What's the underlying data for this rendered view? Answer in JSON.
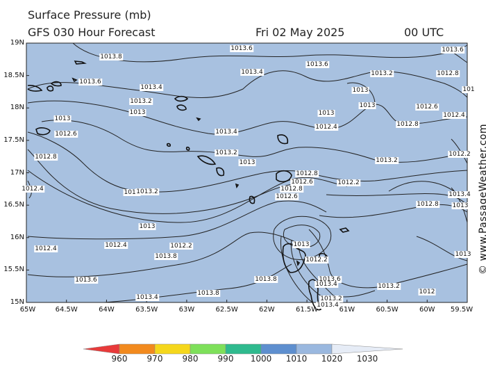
{
  "title_line1": "Surface Pressure (mb)",
  "title_line2": "GFS 030 Hour Forecast",
  "date": "Fri 02 May 2025",
  "time": "00 UTC",
  "credit": "© www.PassageWeather.com",
  "y_axis_labels": [
    "19N",
    "18.5N",
    "18N",
    "17.5N",
    "17N",
    "16.5N",
    "16N",
    "15.5N",
    "15N"
  ],
  "x_axis_labels": [
    "65W",
    "64.5W",
    "64W",
    "63.5W",
    "63W",
    "62.5W",
    "62W",
    "61.5W",
    "61W",
    "60.5W",
    "60W",
    "59.5W"
  ],
  "colorbar": {
    "labels": [
      "960",
      "970",
      "980",
      "990",
      "1000",
      "1010",
      "1020",
      "1030"
    ],
    "colors": [
      "#e83a3a",
      "#f28a1e",
      "#f5d71c",
      "#7ee05a",
      "#2fba8e",
      "#5e8fcf",
      "#9ab8df",
      "#e6ecf6"
    ]
  },
  "map_colors": {
    "sea": "#a8c1e0",
    "isobar": "#222222",
    "land": "#111111"
  },
  "isobar_labels": [
    {
      "text": "1013.8"
    },
    {
      "text": "1013.6"
    },
    {
      "text": "1013.6"
    },
    {
      "text": "1013.4"
    },
    {
      "text": "1013.2"
    },
    {
      "text": "1013"
    },
    {
      "text": "1013"
    },
    {
      "text": "1012.6"
    },
    {
      "text": "1012.8"
    },
    {
      "text": "1012.4"
    },
    {
      "text": "1013.6"
    },
    {
      "text": "1013.4"
    },
    {
      "text": "1013.4"
    },
    {
      "text": "1013.2"
    },
    {
      "text": "1013"
    },
    {
      "text": "1013"
    },
    {
      "text": "1012.8"
    },
    {
      "text": "1012.6"
    },
    {
      "text": "1012.8"
    },
    {
      "text": "1012.6"
    },
    {
      "text": "1012.4"
    },
    {
      "text": "1012.2"
    },
    {
      "text": "1013.8"
    },
    {
      "text": "1013.8"
    },
    {
      "text": "1013.6"
    },
    {
      "text": "1013.8"
    },
    {
      "text": "1013.4"
    },
    {
      "text": "1013.2"
    },
    {
      "text": "1013.4"
    },
    {
      "text": "1013.2"
    },
    {
      "text": "1013.6"
    },
    {
      "text": "1013.4"
    },
    {
      "text": "1013.6"
    },
    {
      "text": "1013.2"
    },
    {
      "text": "1013"
    },
    {
      "text": "1013"
    },
    {
      "text": "1013"
    },
    {
      "text": "1012.4"
    },
    {
      "text": "1012.8"
    },
    {
      "text": "1012.6"
    },
    {
      "text": "1012.8"
    },
    {
      "text": "1012.4"
    },
    {
      "text": "1012.2"
    },
    {
      "text": "1013.2"
    },
    {
      "text": "1013.4"
    },
    {
      "text": "1013"
    },
    {
      "text": "1012.8"
    },
    {
      "text": "1012.2"
    },
    {
      "text": "1012"
    },
    {
      "text": "1013"
    },
    {
      "text": "1013.2"
    },
    {
      "text": "1012.4"
    },
    {
      "text": "1013"
    },
    {
      "text": "1013"
    },
    {
      "text": "1012.2"
    },
    {
      "text": "101"
    }
  ]
}
